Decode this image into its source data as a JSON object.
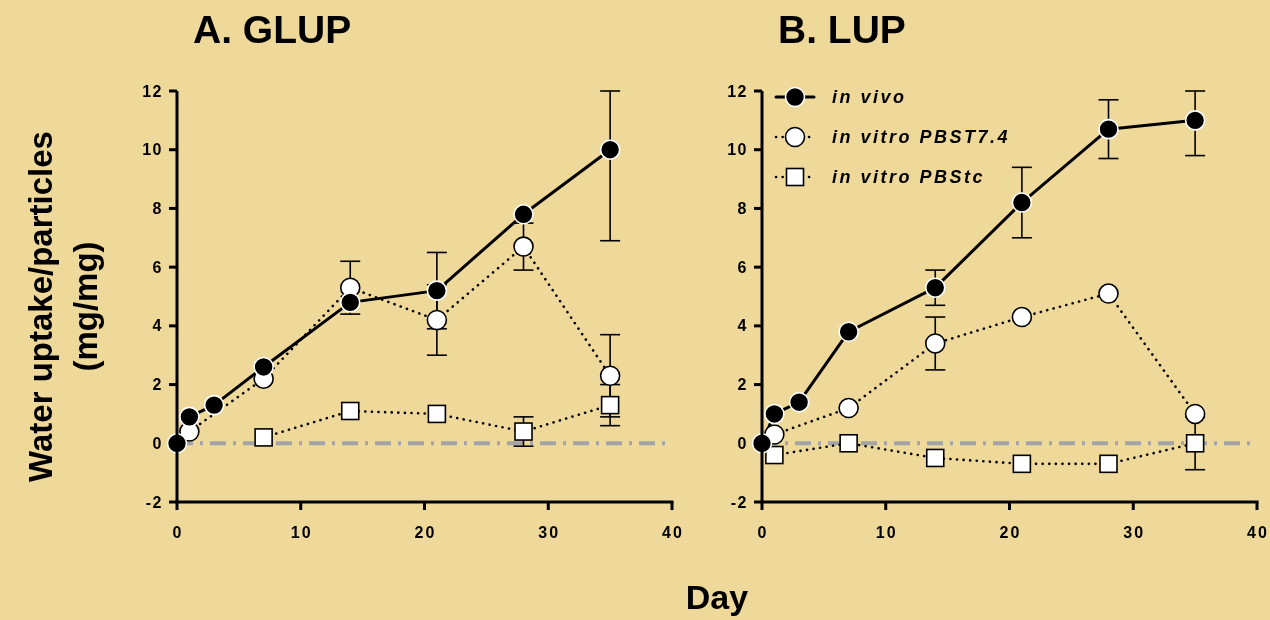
{
  "chart_data": [
    {
      "type": "line",
      "title": "A. GLUP",
      "xlabel": "Day",
      "ylabel": "Water uptake/particles\n(mg/mg)",
      "xlim": [
        0,
        40
      ],
      "xticks": [
        0,
        10,
        20,
        30,
        40
      ],
      "ylim": [
        -2,
        12
      ],
      "yticks": [
        -2,
        0,
        2,
        4,
        6,
        8,
        10,
        12
      ],
      "ref_lines": [
        {
          "axis": "y",
          "value": 0,
          "color": "#a3a3a8",
          "line_style": "dashed"
        }
      ],
      "series": [
        {
          "color": "#000000",
          "marker": "circle",
          "line_style": "solid",
          "x": [
            0,
            1,
            3,
            7,
            14,
            21,
            28,
            35
          ],
          "values": [
            0,
            0.9,
            1.3,
            2.6,
            4.8,
            5.2,
            7.8,
            10.0
          ],
          "errors": [
            null,
            null,
            null,
            null,
            null,
            1.3,
            null,
            [
              6.9,
              12
            ]
          ]
        },
        {
          "color": "#ffffff",
          "marker": "circle",
          "line_style": "dotted",
          "x": [
            1,
            7,
            14,
            21,
            28,
            35
          ],
          "values": [
            0.4,
            2.2,
            5.3,
            4.2,
            6.7,
            2.3
          ],
          "errors": [
            null,
            null,
            0.9,
            1.2,
            0.8,
            1.4
          ]
        },
        {
          "color": "#ffffff",
          "marker": "square",
          "line_style": "dotted",
          "x": [
            7,
            14,
            21,
            28,
            35
          ],
          "values": [
            0.2,
            1.1,
            1.0,
            0.4,
            1.3
          ],
          "errors": [
            null,
            null,
            null,
            0.5,
            0.7
          ]
        }
      ]
    },
    {
      "type": "line",
      "title": "B. LUP",
      "xlim": [
        0,
        40
      ],
      "xticks": [
        0,
        10,
        20,
        30,
        40
      ],
      "ylim": [
        -2,
        12
      ],
      "yticks": [
        -2,
        0,
        2,
        4,
        6,
        8,
        10,
        12
      ],
      "legend": "top left",
      "ref_lines": [
        {
          "axis": "y",
          "value": 0,
          "color": "#a3a3a8",
          "line_style": "dashed"
        }
      ],
      "series": [
        {
          "name": "in vivo",
          "color": "#000000",
          "marker": "circle",
          "line_style": "solid",
          "x": [
            0,
            1,
            3,
            7,
            14,
            21,
            28,
            35
          ],
          "values": [
            0,
            1.0,
            1.4,
            3.8,
            5.3,
            8.2,
            10.7,
            11.0
          ],
          "errors": [
            null,
            null,
            null,
            null,
            0.6,
            1.2,
            1.0,
            [
              9.8,
              12
            ]
          ]
        },
        {
          "name": "in vitro PBST7.4",
          "color": "#ffffff",
          "marker": "circle",
          "line_style": "dotted",
          "x": [
            1,
            7,
            14,
            21,
            28,
            35
          ],
          "values": [
            0.3,
            1.2,
            3.4,
            4.3,
            5.1,
            1.0
          ],
          "errors": [
            null,
            null,
            0.9,
            null,
            null,
            null
          ]
        },
        {
          "name": "in vitro PBStc",
          "color": "#ffffff",
          "marker": "square",
          "line_style": "dotted",
          "x": [
            1,
            7,
            14,
            21,
            28,
            35
          ],
          "values": [
            -0.4,
            0,
            -0.5,
            -0.7,
            -0.7,
            0
          ],
          "errors": [
            null,
            null,
            null,
            null,
            null,
            0.9
          ]
        }
      ]
    }
  ]
}
